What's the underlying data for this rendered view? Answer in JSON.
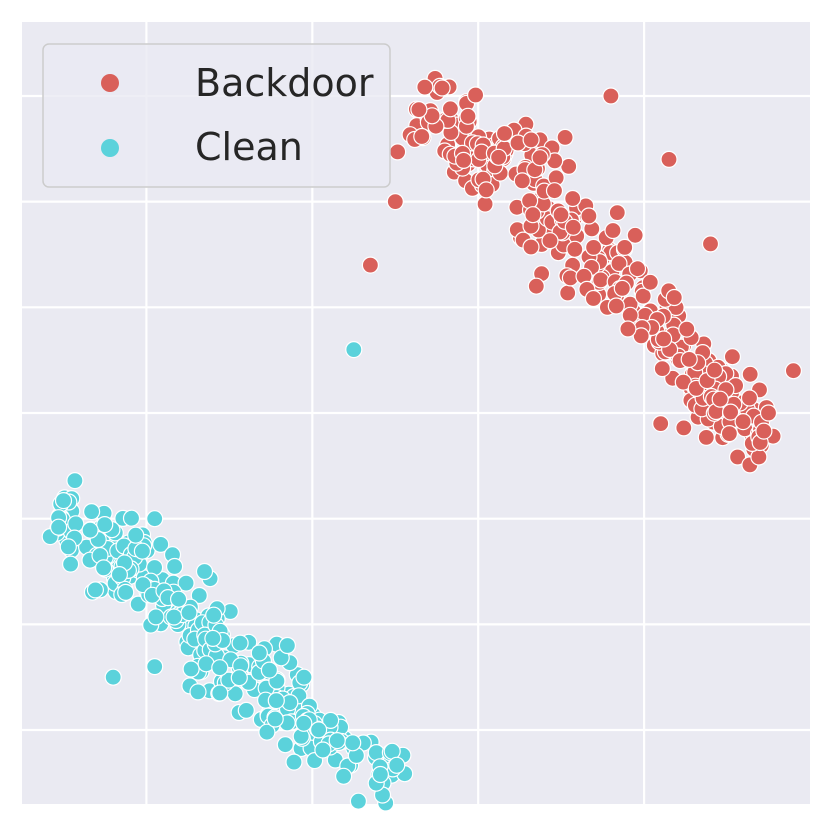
{
  "chart_data": {
    "type": "scatter",
    "title": "",
    "xlabel": "",
    "ylabel": "",
    "xlim": [
      -1.5,
      8.0
    ],
    "ylim": [
      -2.7,
      4.7
    ],
    "grid": true,
    "legend_position": "top-left",
    "series": [
      {
        "name": "Backdoor",
        "color": "#d9605a",
        "clusters": [
          {
            "n": 90,
            "start": [
              3.3,
              4.0
            ],
            "end": [
              4.3,
              3.3
            ],
            "spread": 0.2,
            "jitter": 0.1
          },
          {
            "n": 110,
            "start": [
              4.3,
              3.6
            ],
            "end": [
              5.6,
              2.3
            ],
            "spread": 0.2,
            "jitter": 0.1
          },
          {
            "n": 100,
            "start": [
              5.6,
              2.4
            ],
            "end": [
              7.0,
              1.0
            ],
            "spread": 0.16,
            "jitter": 0.1
          },
          {
            "n": 80,
            "start": [
              6.5,
              1.4
            ],
            "end": [
              7.5,
              0.7
            ],
            "spread": 0.15,
            "jitter": 0.1
          }
        ],
        "outliers": [
          [
            5.6,
            4.0
          ],
          [
            6.3,
            3.4
          ],
          [
            3.0,
            3.0
          ],
          [
            2.7,
            2.4
          ],
          [
            4.7,
            2.2
          ],
          [
            6.8,
            2.6
          ],
          [
            7.5,
            1.0
          ],
          [
            6.2,
            0.9
          ],
          [
            7.8,
            1.4
          ]
        ]
      },
      {
        "name": "Clean",
        "color": "#5bd2db",
        "clusters": [
          {
            "n": 70,
            "start": [
              -1.1,
              0.0
            ],
            "end": [
              0.0,
              -0.5
            ],
            "spread": 0.17,
            "jitter": 0.1
          },
          {
            "n": 90,
            "start": [
              -0.4,
              -0.3
            ],
            "end": [
              0.9,
              -1.2
            ],
            "spread": 0.2,
            "jitter": 0.1
          },
          {
            "n": 100,
            "start": [
              0.7,
              -1.1
            ],
            "end": [
              2.0,
              -2.0
            ],
            "spread": 0.2,
            "jitter": 0.1
          },
          {
            "n": 60,
            "start": [
              1.9,
              -1.9
            ],
            "end": [
              3.1,
              -2.5
            ],
            "spread": 0.14,
            "jitter": 0.1
          }
        ],
        "outliers": [
          [
            0.1,
            0.0
          ],
          [
            0.7,
            -0.5
          ],
          [
            1.9,
            -1.5
          ],
          [
            0.1,
            -1.4
          ],
          [
            -0.4,
            -1.5
          ],
          [
            2.3,
            -2.1
          ],
          [
            2.5,
            1.6
          ],
          [
            1.7,
            -1.2
          ]
        ]
      }
    ]
  }
}
